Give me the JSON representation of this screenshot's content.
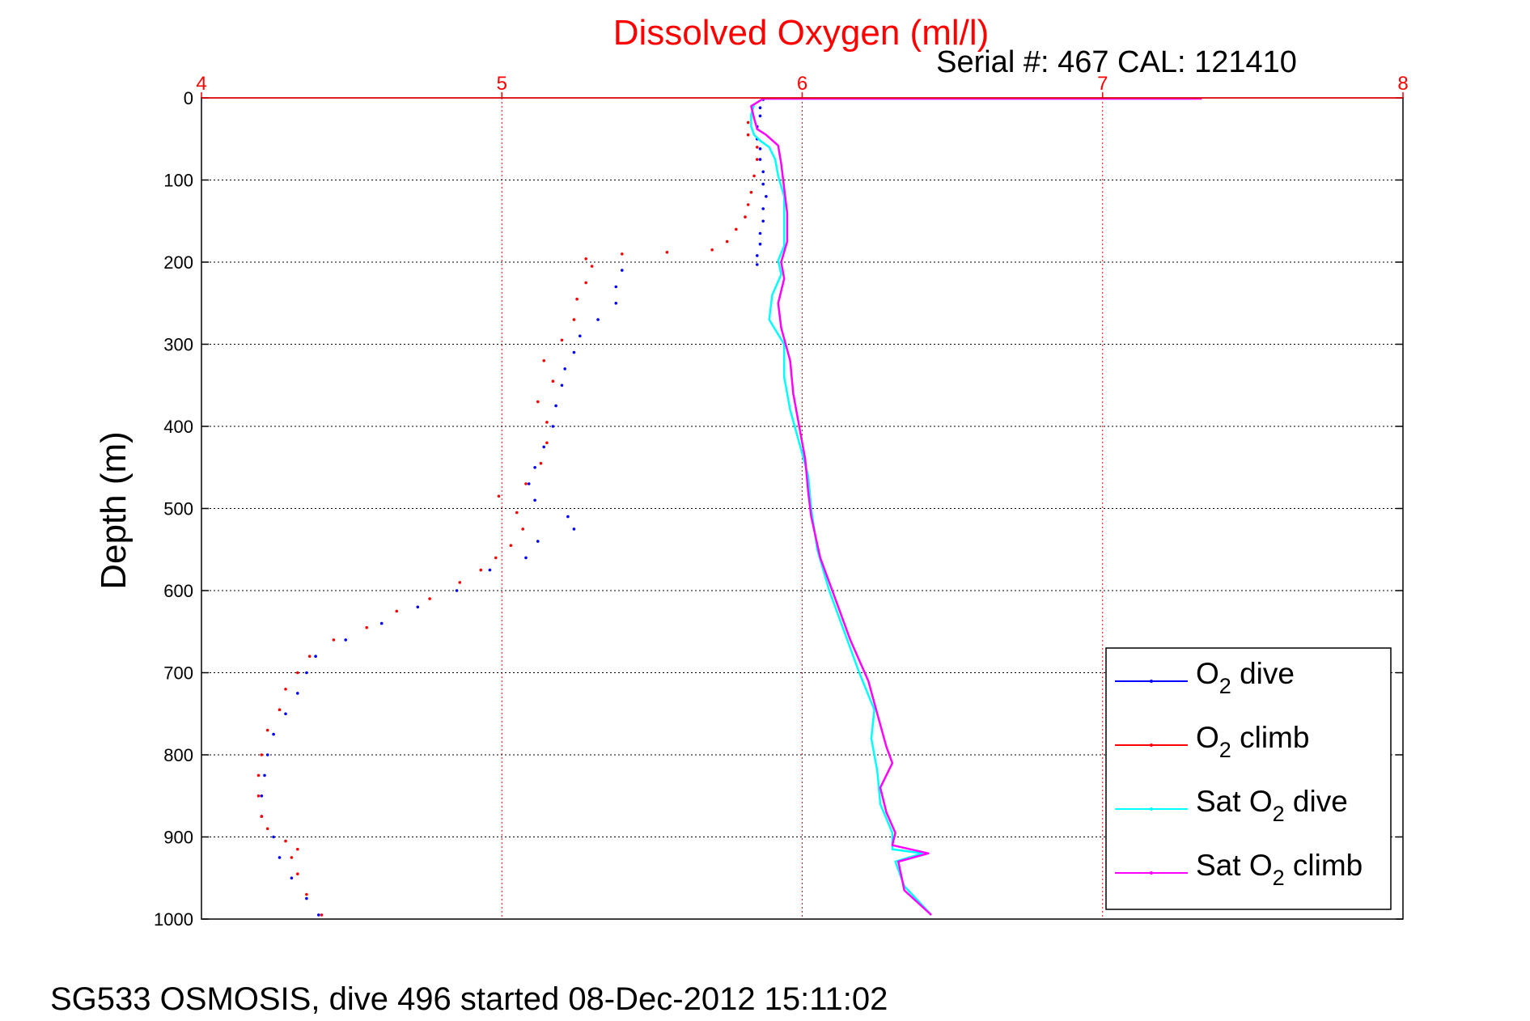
{
  "chart_data": {
    "type": "line",
    "title": "Dissolved Oxygen (ml/l)",
    "subtitle": "Serial #: 467  CAL: 121410",
    "xlabel": "",
    "ylabel": "Depth (m)",
    "xlim": [
      4,
      8
    ],
    "ylim": [
      0,
      1000
    ],
    "y_reversed": true,
    "x_axis_position": "top",
    "x_ticks": [
      4,
      5,
      6,
      7,
      8
    ],
    "y_ticks": [
      0,
      100,
      200,
      300,
      400,
      500,
      600,
      700,
      800,
      900,
      1000
    ],
    "grid": true,
    "legend_position": "bottom-right",
    "colors": {
      "title": "#ff0000",
      "x_axis": "#ff0000",
      "o2_dive": "#0000ff",
      "o2_climb": "#ff0000",
      "sat_dive": "#00ffff",
      "sat_climb": "#ff00ff"
    },
    "series": [
      {
        "name": "O2 dive",
        "style": "dots",
        "points": [
          [
            5.87,
            2
          ],
          [
            5.86,
            12
          ],
          [
            5.86,
            22
          ],
          [
            5.85,
            35
          ],
          [
            5.85,
            50
          ],
          [
            5.86,
            62
          ],
          [
            5.86,
            75
          ],
          [
            5.87,
            90
          ],
          [
            5.87,
            105
          ],
          [
            5.88,
            120
          ],
          [
            5.87,
            135
          ],
          [
            5.87,
            150
          ],
          [
            5.86,
            165
          ],
          [
            5.86,
            178
          ],
          [
            5.85,
            192
          ],
          [
            5.85,
            203
          ],
          [
            5.4,
            210
          ],
          [
            5.38,
            230
          ],
          [
            5.38,
            250
          ],
          [
            5.32,
            270
          ],
          [
            5.26,
            290
          ],
          [
            5.24,
            310
          ],
          [
            5.21,
            330
          ],
          [
            5.2,
            350
          ],
          [
            5.18,
            375
          ],
          [
            5.17,
            400
          ],
          [
            5.14,
            425
          ],
          [
            5.11,
            450
          ],
          [
            5.09,
            470
          ],
          [
            5.11,
            490
          ],
          [
            5.22,
            510
          ],
          [
            5.24,
            525
          ],
          [
            5.12,
            540
          ],
          [
            5.08,
            560
          ],
          [
            4.96,
            575
          ],
          [
            4.85,
            600
          ],
          [
            4.72,
            620
          ],
          [
            4.6,
            640
          ],
          [
            4.48,
            660
          ],
          [
            4.38,
            680
          ],
          [
            4.35,
            700
          ],
          [
            4.32,
            725
          ],
          [
            4.28,
            750
          ],
          [
            4.24,
            775
          ],
          [
            4.22,
            800
          ],
          [
            4.21,
            825
          ],
          [
            4.2,
            850
          ],
          [
            4.2,
            875
          ],
          [
            4.24,
            900
          ],
          [
            4.26,
            925
          ],
          [
            4.3,
            950
          ],
          [
            4.35,
            975
          ],
          [
            4.39,
            995
          ]
        ]
      },
      {
        "name": "O2 climb",
        "style": "dots",
        "points": [
          [
            5.82,
            30
          ],
          [
            5.82,
            45
          ],
          [
            5.85,
            60
          ],
          [
            5.85,
            75
          ],
          [
            5.84,
            95
          ],
          [
            5.83,
            115
          ],
          [
            5.82,
            130
          ],
          [
            5.81,
            145
          ],
          [
            5.78,
            160
          ],
          [
            5.75,
            175
          ],
          [
            5.7,
            185
          ],
          [
            5.55,
            188
          ],
          [
            5.4,
            190
          ],
          [
            5.28,
            196
          ],
          [
            5.3,
            205
          ],
          [
            5.28,
            225
          ],
          [
            5.25,
            245
          ],
          [
            5.24,
            270
          ],
          [
            5.2,
            295
          ],
          [
            5.14,
            320
          ],
          [
            5.17,
            345
          ],
          [
            5.12,
            370
          ],
          [
            5.15,
            395
          ],
          [
            5.15,
            420
          ],
          [
            5.13,
            445
          ],
          [
            5.08,
            470
          ],
          [
            4.99,
            485
          ],
          [
            5.05,
            505
          ],
          [
            5.07,
            525
          ],
          [
            5.03,
            545
          ],
          [
            4.98,
            560
          ],
          [
            4.93,
            575
          ],
          [
            4.86,
            590
          ],
          [
            4.76,
            610
          ],
          [
            4.65,
            625
          ],
          [
            4.55,
            645
          ],
          [
            4.44,
            660
          ],
          [
            4.36,
            680
          ],
          [
            4.32,
            700
          ],
          [
            4.28,
            720
          ],
          [
            4.26,
            745
          ],
          [
            4.22,
            770
          ],
          [
            4.2,
            800
          ],
          [
            4.19,
            825
          ],
          [
            4.19,
            850
          ],
          [
            4.2,
            875
          ],
          [
            4.22,
            890
          ],
          [
            4.28,
            905
          ],
          [
            4.32,
            915
          ],
          [
            4.3,
            925
          ],
          [
            4.32,
            945
          ],
          [
            4.35,
            970
          ],
          [
            4.4,
            995
          ]
        ]
      },
      {
        "name": "Sat O2 dive",
        "style": "line",
        "points": [
          [
            7.3,
            1
          ],
          [
            5.87,
            1
          ],
          [
            5.84,
            8
          ],
          [
            5.83,
            20
          ],
          [
            5.83,
            35
          ],
          [
            5.84,
            45
          ],
          [
            5.86,
            52
          ],
          [
            5.89,
            60
          ],
          [
            5.91,
            75
          ],
          [
            5.92,
            95
          ],
          [
            5.94,
            120
          ],
          [
            5.94,
            150
          ],
          [
            5.94,
            180
          ],
          [
            5.92,
            198
          ],
          [
            5.93,
            215
          ],
          [
            5.9,
            240
          ],
          [
            5.89,
            270
          ],
          [
            5.94,
            300
          ],
          [
            5.94,
            340
          ],
          [
            5.96,
            380
          ],
          [
            5.99,
            420
          ],
          [
            6.02,
            460
          ],
          [
            6.03,
            500
          ],
          [
            6.05,
            550
          ],
          [
            6.09,
            600
          ],
          [
            6.14,
            650
          ],
          [
            6.19,
            700
          ],
          [
            6.24,
            745
          ],
          [
            6.23,
            780
          ],
          [
            6.25,
            820
          ],
          [
            6.26,
            860
          ],
          [
            6.3,
            895
          ],
          [
            6.3,
            915
          ],
          [
            6.4,
            920
          ],
          [
            6.31,
            930
          ],
          [
            6.34,
            960
          ],
          [
            6.43,
            995
          ]
        ]
      },
      {
        "name": "Sat O2 climb",
        "style": "line",
        "points": [
          [
            7.33,
            1
          ],
          [
            5.87,
            1
          ],
          [
            5.83,
            10
          ],
          [
            5.84,
            25
          ],
          [
            5.85,
            38
          ],
          [
            5.88,
            45
          ],
          [
            5.92,
            58
          ],
          [
            5.93,
            80
          ],
          [
            5.94,
            110
          ],
          [
            5.95,
            140
          ],
          [
            5.95,
            175
          ],
          [
            5.93,
            200
          ],
          [
            5.94,
            220
          ],
          [
            5.92,
            250
          ],
          [
            5.93,
            280
          ],
          [
            5.96,
            320
          ],
          [
            5.97,
            360
          ],
          [
            5.99,
            400
          ],
          [
            6.01,
            440
          ],
          [
            6.02,
            480
          ],
          [
            6.03,
            510
          ],
          [
            6.06,
            560
          ],
          [
            6.12,
            620
          ],
          [
            6.16,
            660
          ],
          [
            6.22,
            710
          ],
          [
            6.25,
            750
          ],
          [
            6.28,
            790
          ],
          [
            6.3,
            810
          ],
          [
            6.26,
            840
          ],
          [
            6.28,
            870
          ],
          [
            6.31,
            895
          ],
          [
            6.3,
            910
          ],
          [
            6.42,
            920
          ],
          [
            6.32,
            930
          ],
          [
            6.34,
            965
          ],
          [
            6.43,
            995
          ]
        ]
      }
    ],
    "legend": [
      {
        "base": "O",
        "sub": "2",
        "rest": " dive",
        "color": "#0000ff"
      },
      {
        "base": "O",
        "sub": "2",
        "rest": " climb",
        "color": "#ff0000"
      },
      {
        "base": "Sat O",
        "sub": "2",
        "rest": " dive",
        "color": "#00ffff"
      },
      {
        "base": "Sat O",
        "sub": "2",
        "rest": " climb",
        "color": "#ff00ff"
      }
    ]
  },
  "footer": "SG533 OSMOSIS, dive 496 started 08-Dec-2012 15:11:02"
}
